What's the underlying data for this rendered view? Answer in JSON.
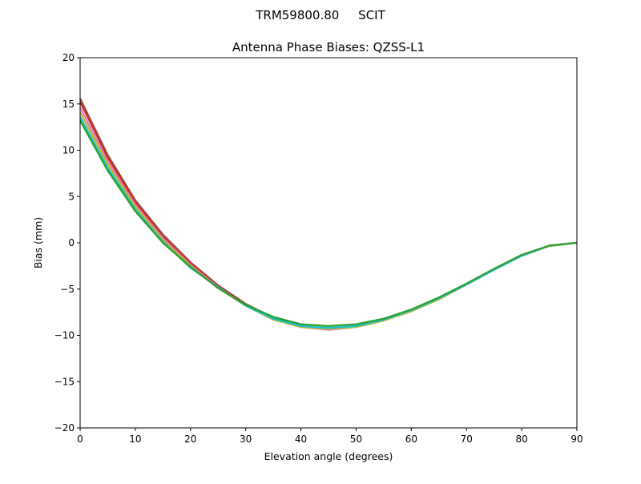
{
  "chart_data": {
    "type": "line",
    "suptitle": "TRM59800.80     SCIT",
    "title": "Antenna Phase Biases: QZSS-L1",
    "xlabel": "Elevation angle (degrees)",
    "ylabel": "Bias (mm)",
    "xlim": [
      0,
      90
    ],
    "ylim": [
      -20,
      20
    ],
    "xticks": [
      0,
      10,
      20,
      30,
      40,
      50,
      60,
      70,
      80,
      90
    ],
    "yticks": [
      -20,
      -15,
      -10,
      -5,
      0,
      5,
      10,
      15,
      20
    ],
    "grid": false,
    "x": [
      0,
      5,
      10,
      15,
      20,
      25,
      30,
      35,
      40,
      45,
      50,
      55,
      60,
      65,
      70,
      75,
      80,
      85,
      90
    ],
    "series": [
      {
        "color": "#8c564b",
        "values": [
          15.6,
          9.5,
          4.6,
          0.9,
          -2.1,
          -4.6,
          -6.6,
          -8.1,
          -9.0,
          -9.3,
          -9.0,
          -8.3,
          -7.3,
          -6.0,
          -4.5,
          -2.9,
          -1.35,
          -0.3,
          0
        ]
      },
      {
        "color": "#d62728",
        "values": [
          15.2,
          9.2,
          4.4,
          0.7,
          -2.2,
          -4.7,
          -6.7,
          -8.2,
          -9.1,
          -9.3,
          -9.1,
          -8.4,
          -7.4,
          -6.0,
          -4.5,
          -2.9,
          -1.4,
          -0.3,
          0
        ]
      },
      {
        "color": "#e377c2",
        "values": [
          14.6,
          8.8,
          4.1,
          0.5,
          -2.4,
          -4.8,
          -6.8,
          -8.3,
          -9.1,
          -9.4,
          -9.1,
          -8.4,
          -7.4,
          -6.1,
          -4.5,
          -2.9,
          -1.4,
          -0.35,
          0
        ]
      },
      {
        "color": "#bcbd22",
        "values": [
          14.1,
          8.5,
          3.9,
          0.3,
          -2.5,
          -4.9,
          -6.8,
          -8.3,
          -9.1,
          -9.3,
          -9.1,
          -8.4,
          -7.4,
          -6.1,
          -4.5,
          -2.9,
          -1.4,
          -0.35,
          0
        ]
      },
      {
        "color": "#17becf",
        "values": [
          13.6,
          8.1,
          3.6,
          0.1,
          -2.7,
          -4.8,
          -6.8,
          -8.2,
          -9.0,
          -9.2,
          -9.0,
          -8.3,
          -7.3,
          -6.0,
          -4.5,
          -2.9,
          -1.4,
          -0.3,
          0
        ]
      },
      {
        "color": "#2ca02c",
        "values": [
          13.2,
          7.8,
          3.4,
          0.0,
          -2.6,
          -4.9,
          -6.7,
          -8.0,
          -8.8,
          -9.0,
          -8.8,
          -8.2,
          -7.2,
          -5.9,
          -4.4,
          -2.8,
          -1.3,
          -0.3,
          0
        ]
      }
    ]
  }
}
